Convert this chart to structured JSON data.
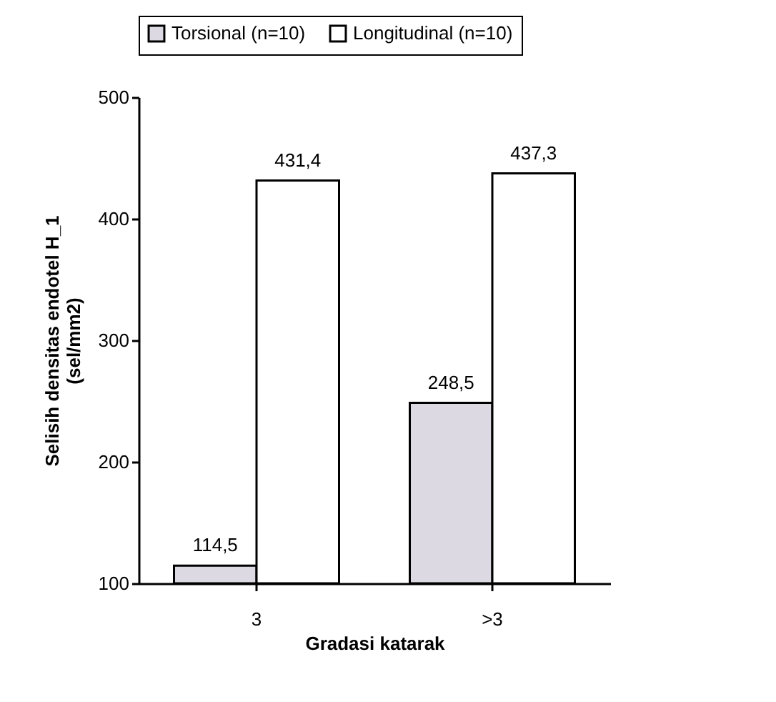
{
  "chart_data": {
    "type": "bar",
    "xlabel": "Gradasi katarak",
    "ylabel": "Selisih densitas endotel H_1\n(sel/mm2)",
    "categories": [
      "3",
      ">3"
    ],
    "series": [
      {
        "name": "Torsional (n=10)",
        "color": "#dcd9e2",
        "values": [
          114.5,
          248.5
        ],
        "value_labels": [
          "114,5",
          "248,5"
        ]
      },
      {
        "name": "Longitudinal (n=10)",
        "color": "#ffffff",
        "values": [
          431.4,
          437.3
        ],
        "value_labels": [
          "431,4",
          "437,3"
        ]
      }
    ],
    "ylim": [
      100,
      500
    ],
    "yticks": [
      100,
      200,
      300,
      400,
      500
    ],
    "legend": "top",
    "grid": false
  }
}
